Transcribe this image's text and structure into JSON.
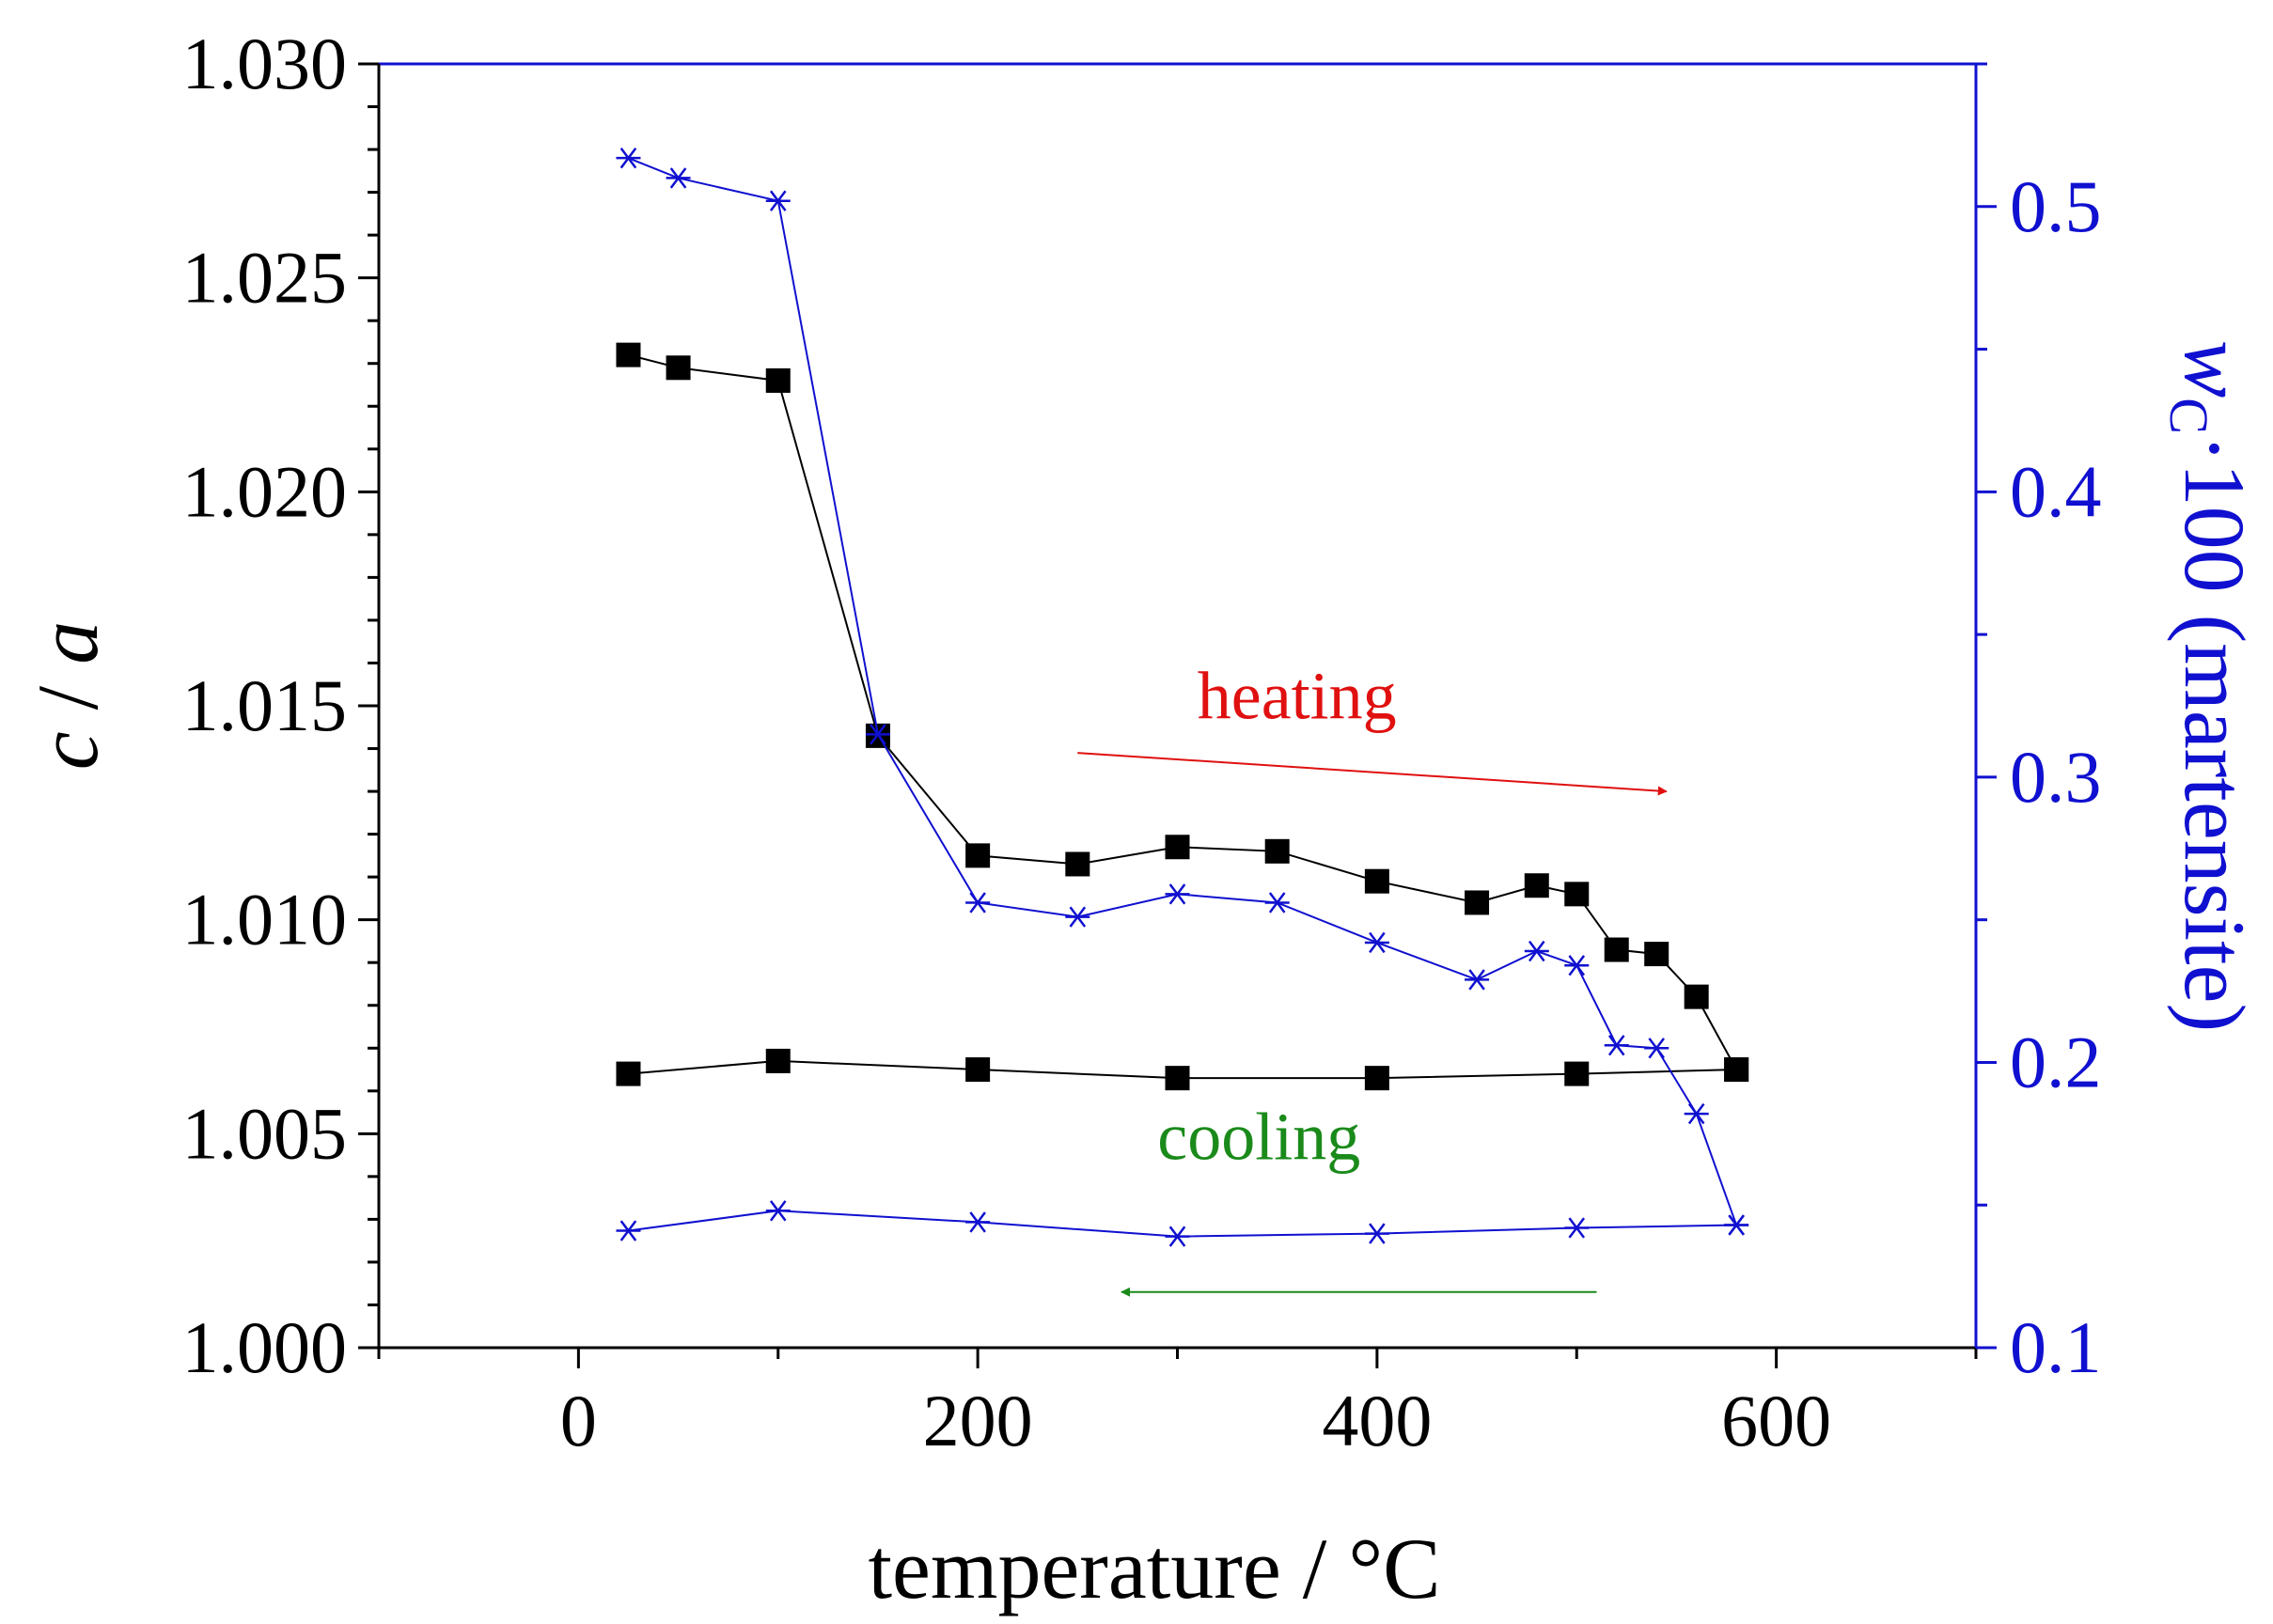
{
  "chart_data": {
    "type": "line",
    "xlabel": "temperature / °C",
    "ylabel_left": {
      "var": "c",
      "sep": " / ",
      "var2": "a"
    },
    "ylabel_right": {
      "var": "w",
      "sub": "C",
      "rest": "·100 (martensite)"
    },
    "xlim": [
      -100,
      700
    ],
    "ylim_left": [
      1.0,
      1.03
    ],
    "ylim_right": [
      0.1,
      0.55
    ],
    "x_ticks": [
      0,
      200,
      400,
      600
    ],
    "x_tick_labels": [
      "0",
      "200",
      "400",
      "600"
    ],
    "y_left_ticks": [
      1.0,
      1.005,
      1.01,
      1.015,
      1.02,
      1.025,
      1.03
    ],
    "y_left_tick_labels": [
      "1.000",
      "1.005",
      "1.010",
      "1.015",
      "1.020",
      "1.025",
      "1.030"
    ],
    "y_right_ticks": [
      0.1,
      0.2,
      0.3,
      0.4,
      0.5
    ],
    "y_right_tick_labels": [
      "0.1",
      "0.2",
      "0.3",
      "0.4",
      "0.5"
    ],
    "colors": {
      "left_axis": "#000000",
      "right_axis": "#1010d0",
      "heating": "#e01010",
      "cooling": "#1a8a1a"
    },
    "series": [
      {
        "name": "c/a heating",
        "axis": "left",
        "marker": "square",
        "color": "#000000",
        "x": [
          25,
          50,
          100,
          150,
          200,
          250,
          300,
          350,
          400,
          450,
          480,
          500,
          520,
          540,
          560,
          580
        ],
        "values": [
          1.0232,
          1.0229,
          1.0226,
          1.0143,
          1.0115,
          1.0113,
          1.0117,
          1.0116,
          1.0109,
          1.0104,
          1.0108,
          1.0106,
          1.0093,
          1.0092,
          1.0082,
          1.0065
        ]
      },
      {
        "name": "c/a cooling",
        "axis": "left",
        "marker": "square",
        "color": "#000000",
        "x": [
          25,
          100,
          200,
          300,
          400,
          500,
          580
        ],
        "values": [
          1.0064,
          1.0067,
          1.0065,
          1.0063,
          1.0063,
          1.0064,
          1.0065
        ]
      },
      {
        "name": "wC heating",
        "axis": "right",
        "marker": "asterisk",
        "color": "#1010d0",
        "x": [
          25,
          50,
          100,
          150,
          200,
          250,
          300,
          350,
          400,
          450,
          480,
          500,
          520,
          540,
          560,
          580
        ],
        "values": [
          0.517,
          0.51,
          0.502,
          0.315,
          0.256,
          0.251,
          0.259,
          0.256,
          0.242,
          0.229,
          0.239,
          0.234,
          0.206,
          0.205,
          0.182,
          0.143
        ]
      },
      {
        "name": "wC cooling",
        "axis": "right",
        "marker": "asterisk",
        "color": "#1010d0",
        "x": [
          25,
          100,
          200,
          300,
          400,
          500,
          580
        ],
        "values": [
          0.141,
          0.148,
          0.144,
          0.139,
          0.14,
          0.142,
          0.143
        ]
      }
    ],
    "annotations": [
      {
        "text": "heating",
        "color": "#e01010",
        "arrow_from": [
          250,
          1.0139
        ],
        "arrow_to": [
          545,
          1.013
        ],
        "text_at": [
          310,
          1.0147
        ]
      },
      {
        "text": "cooling",
        "color": "#1a8a1a",
        "arrow_from": [
          510,
          1.0013
        ],
        "arrow_to": [
          272,
          1.0013
        ],
        "text_at": [
          290,
          1.0044
        ]
      }
    ]
  }
}
